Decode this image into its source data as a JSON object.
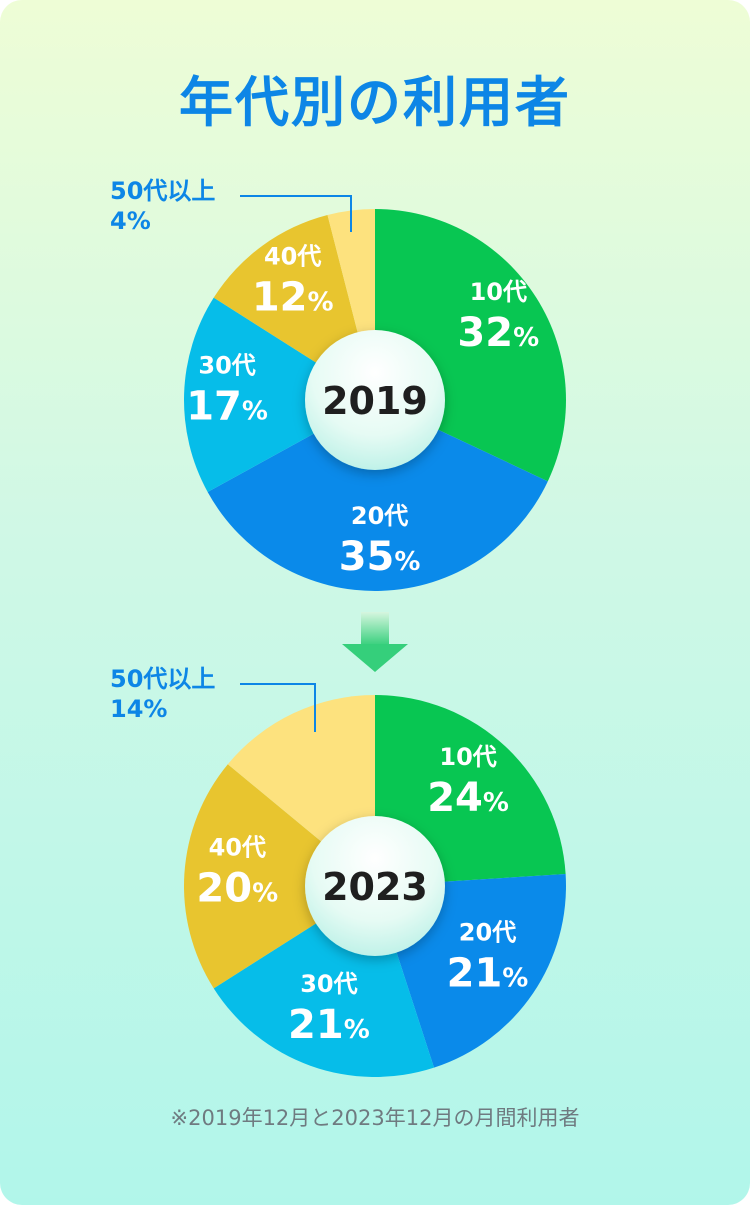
{
  "title": "年代別の利用者",
  "footnote": "※2019年12月と2023年12月の月間利用者",
  "colors": {
    "title": "#0d86e6",
    "callout": "#0d86e6",
    "10代": "#08c652",
    "20代": "#0a8aea",
    "30代": "#06bde9",
    "40代": "#e8c52f",
    "50代以上": "#fde27e"
  },
  "chart_data": [
    {
      "type": "pie",
      "center_label": "2019",
      "slices": [
        {
          "category": "10代",
          "value": 32,
          "value_text": "32%"
        },
        {
          "category": "20代",
          "value": 35,
          "value_text": "35%"
        },
        {
          "category": "30代",
          "value": 17,
          "value_text": "17%"
        },
        {
          "category": "40代",
          "value": 12,
          "value_text": "12%"
        },
        {
          "category": "50代以上",
          "value": 4,
          "value_text": "4%"
        }
      ]
    },
    {
      "type": "pie",
      "center_label": "2023",
      "slices": [
        {
          "category": "10代",
          "value": 24,
          "value_text": "24%"
        },
        {
          "category": "20代",
          "value": 21,
          "value_text": "21%"
        },
        {
          "category": "30代",
          "value": 21,
          "value_text": "21%"
        },
        {
          "category": "40代",
          "value": 20,
          "value_text": "20%"
        },
        {
          "category": "50代以上",
          "value": 14,
          "value_text": "14%"
        }
      ]
    }
  ]
}
